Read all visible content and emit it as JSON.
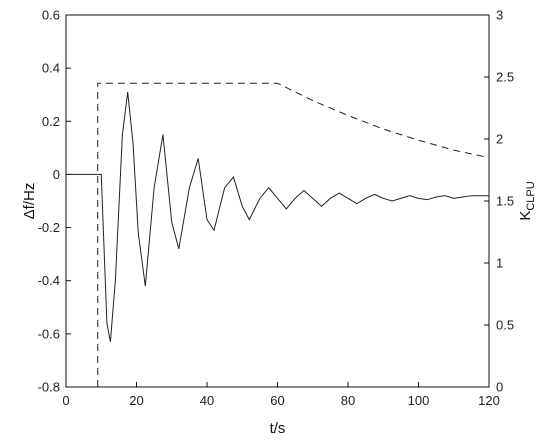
{
  "chart_data": {
    "type": "line",
    "title": "",
    "xlabel": "t/s",
    "ylabel_left": "Δf/Hz",
    "ylabel_right_main": "K",
    "ylabel_right_sub": "CLPU",
    "xlim": [
      0,
      120
    ],
    "ylim_left": [
      -0.8,
      0.6
    ],
    "ylim_right": [
      0,
      3
    ],
    "x_ticks": [
      0,
      20,
      40,
      60,
      80,
      100,
      120
    ],
    "x_tick_labels": [
      "0",
      "20",
      "40",
      "60",
      "80",
      "100",
      "120"
    ],
    "y_left_ticks": [
      -0.8,
      -0.6,
      -0.4,
      -0.2,
      0,
      0.2,
      0.4,
      0.6
    ],
    "y_left_tick_labels": [
      "-0.8",
      "-0.6",
      "-0.4",
      "-0.2",
      "0",
      "0.2",
      "0.4",
      "0.6"
    ],
    "y_right_ticks": [
      0,
      0.5,
      1,
      1.5,
      2,
      2.5,
      3
    ],
    "y_right_tick_labels": [
      "0",
      "0.5",
      "1",
      "1.5",
      "2",
      "2.5",
      "3"
    ],
    "grid": false,
    "legend": "none",
    "series": [
      {
        "axis": "left",
        "style": "solid",
        "color": "#222222",
        "points": [
          [
            0,
            0
          ],
          [
            10,
            0
          ],
          [
            11.6,
            -0.56
          ],
          [
            12.6,
            -0.63
          ],
          [
            14,
            -0.4
          ],
          [
            16,
            0.15
          ],
          [
            17.5,
            0.31
          ],
          [
            19,
            0.12
          ],
          [
            20.5,
            -0.22
          ],
          [
            22.5,
            -0.42
          ],
          [
            25,
            -0.05
          ],
          [
            27.5,
            0.15
          ],
          [
            30,
            -0.18
          ],
          [
            32,
            -0.28
          ],
          [
            35,
            -0.05
          ],
          [
            37.5,
            0.06
          ],
          [
            40,
            -0.17
          ],
          [
            42,
            -0.21
          ],
          [
            45,
            -0.05
          ],
          [
            47.5,
            -0.01
          ],
          [
            50,
            -0.12
          ],
          [
            52,
            -0.17
          ],
          [
            55,
            -0.09
          ],
          [
            57.5,
            -0.05
          ],
          [
            60,
            -0.09
          ],
          [
            62.5,
            -0.13
          ],
          [
            65,
            -0.09
          ],
          [
            67.5,
            -0.06
          ],
          [
            70,
            -0.09
          ],
          [
            72.5,
            -0.12
          ],
          [
            75,
            -0.09
          ],
          [
            77.5,
            -0.07
          ],
          [
            80,
            -0.09
          ],
          [
            82.5,
            -0.11
          ],
          [
            85,
            -0.09
          ],
          [
            87.5,
            -0.075
          ],
          [
            90,
            -0.09
          ],
          [
            92.5,
            -0.1
          ],
          [
            95,
            -0.09
          ],
          [
            97.5,
            -0.08
          ],
          [
            100,
            -0.09
          ],
          [
            102.5,
            -0.095
          ],
          [
            105,
            -0.085
          ],
          [
            107.5,
            -0.08
          ],
          [
            110,
            -0.09
          ],
          [
            112.5,
            -0.085
          ],
          [
            115,
            -0.08
          ],
          [
            117.5,
            -0.08
          ],
          [
            120,
            -0.08
          ]
        ]
      },
      {
        "axis": "right",
        "style": "dashed",
        "color": "#222222",
        "points": [
          [
            9,
            0
          ],
          [
            9,
            2.45
          ],
          [
            60,
            2.45
          ],
          [
            70,
            2.31
          ],
          [
            80,
            2.19
          ],
          [
            90,
            2.08
          ],
          [
            100,
            1.99
          ],
          [
            110,
            1.91
          ],
          [
            120,
            1.85
          ]
        ]
      }
    ]
  }
}
